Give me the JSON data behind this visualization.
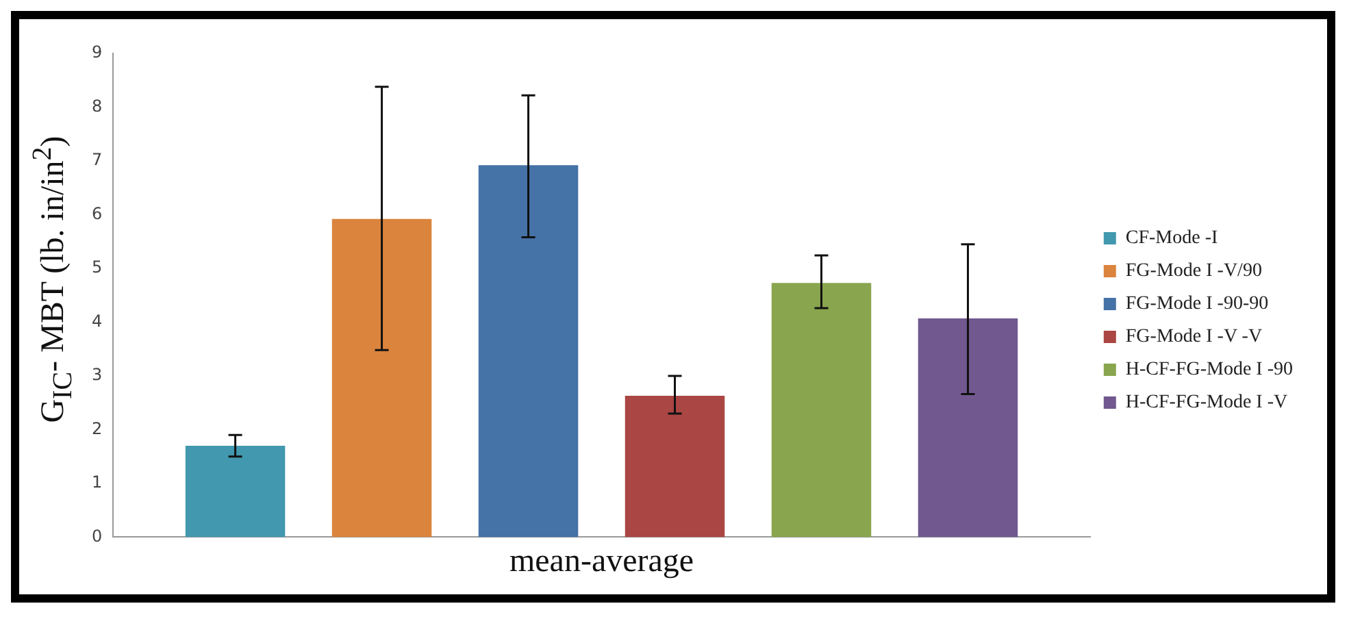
{
  "chart_data": {
    "type": "bar",
    "xlabel": "mean-average",
    "ylabel": "G$_{IC}$- MBT (lb. in/in$^{2}$)",
    "categories": [
      null
    ],
    "series": [
      {
        "name": "CF-Mode -I",
        "color": "#4298ae",
        "values": [
          1.7
        ],
        "errors": [
          [
            1.5,
            1.9
          ]
        ]
      },
      {
        "name": "FG-Mode I -V/90",
        "color": "#db843d",
        "values": [
          5.92
        ],
        "errors": [
          [
            3.48,
            8.38
          ]
        ]
      },
      {
        "name": "FG-Mode I -90-90",
        "color": "#4572a7",
        "values": [
          6.92
        ],
        "errors": [
          [
            5.58,
            8.22
          ]
        ]
      },
      {
        "name": "FG-Mode I -V -V",
        "color": "#aa4643",
        "values": [
          2.63
        ],
        "errors": [
          [
            2.3,
            3.0
          ]
        ]
      },
      {
        "name": "H-CF-FG-Mode I -90",
        "color": "#89a54e",
        "values": [
          4.73
        ],
        "errors": [
          [
            4.26,
            5.24
          ]
        ]
      },
      {
        "name": "H-CF-FG-Mode I -V",
        "color": "#71588f",
        "values": [
          4.07
        ],
        "errors": [
          [
            2.66,
            5.45
          ]
        ]
      }
    ],
    "ylim": [
      0,
      9
    ],
    "yticks": [
      0,
      1,
      2,
      3,
      4,
      5,
      6,
      7,
      8,
      9
    ],
    "grid": false,
    "legend": "right"
  }
}
